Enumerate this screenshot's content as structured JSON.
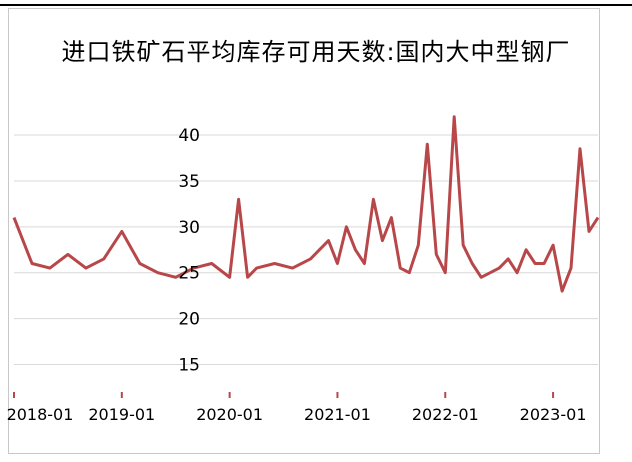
{
  "chart_data": {
    "type": "line",
    "title": "进口铁矿石平均库存可用天数:国内大中型钢厂",
    "xlabel": "",
    "ylabel": "",
    "x_tick_labels": [
      "2018-01",
      "2019-01",
      "2020-01",
      "2021-01",
      "2022-01",
      "2023-01"
    ],
    "y_tick_labels": [
      "15",
      "20",
      "25",
      "30",
      "35",
      "40"
    ],
    "ylim": [
      12,
      46
    ],
    "grid": true,
    "legend": "none",
    "line_color": "#b8474a",
    "x_range": [
      "2018-01",
      "2023-06"
    ],
    "series": [
      {
        "x": [
          "2018-01",
          "2018-03",
          "2018-05",
          "2018-07",
          "2018-09",
          "2018-11",
          "2019-01",
          "2019-03",
          "2019-05",
          "2019-07",
          "2019-09",
          "2019-11",
          "2020-01",
          "2020-02",
          "2020-03",
          "2020-04",
          "2020-06",
          "2020-08",
          "2020-10",
          "2020-12",
          "2021-01",
          "2021-02",
          "2021-03",
          "2021-04",
          "2021-05",
          "2021-06",
          "2021-07",
          "2021-08",
          "2021-09",
          "2021-10",
          "2021-11",
          "2021-12",
          "2022-01",
          "2022-02",
          "2022-03",
          "2022-04",
          "2022-05",
          "2022-06",
          "2022-07",
          "2022-08",
          "2022-09",
          "2022-10",
          "2022-11",
          "2022-12",
          "2023-01",
          "2023-02",
          "2023-03",
          "2023-04",
          "2023-05",
          "2023-06"
        ],
        "values": [
          31.0,
          26.0,
          25.5,
          27.0,
          25.5,
          26.5,
          29.5,
          26.0,
          25.0,
          24.5,
          25.5,
          26.0,
          24.5,
          33.0,
          24.5,
          25.5,
          26.0,
          25.5,
          26.5,
          28.5,
          26.0,
          30.0,
          27.5,
          26.0,
          33.0,
          28.5,
          31.0,
          25.5,
          25.0,
          28.0,
          39.0,
          27.0,
          25.0,
          42.0,
          28.0,
          26.0,
          24.5,
          25.0,
          25.5,
          26.5,
          25.0,
          27.5,
          26.0,
          26.0,
          28.0,
          23.0,
          25.5,
          38.5,
          29.5,
          31.0
        ]
      }
    ]
  }
}
